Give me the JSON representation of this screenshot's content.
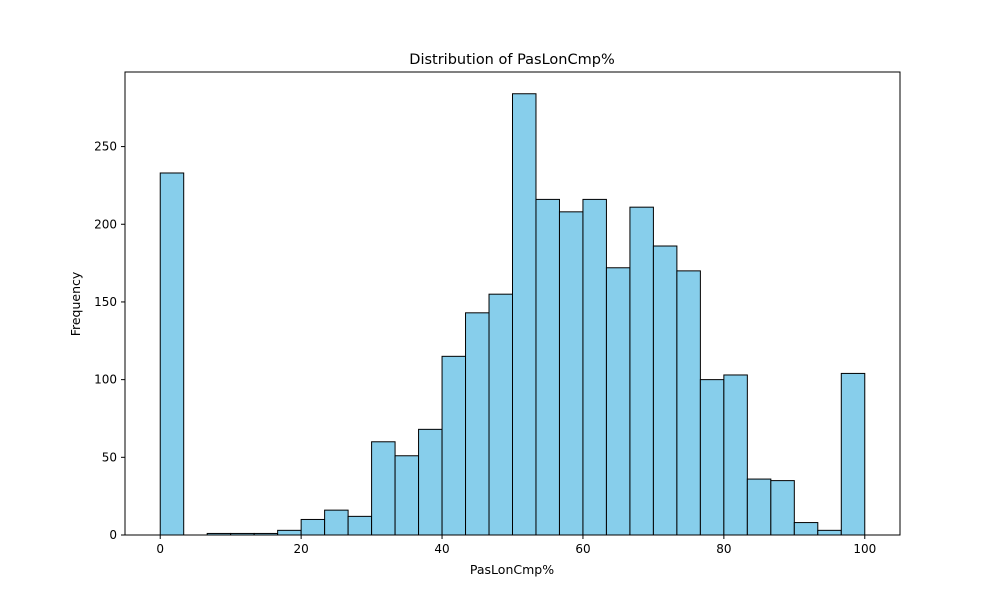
{
  "chart_data": {
    "type": "bar",
    "title": "Distribution of PasLonCmp%",
    "xlabel": "PasLonCmp%",
    "ylabel": "Frequency",
    "bin_edges": [
      0,
      3.333,
      6.667,
      10,
      13.333,
      16.667,
      20,
      23.333,
      26.667,
      30,
      33.333,
      36.667,
      40,
      43.333,
      46.667,
      50,
      53.333,
      56.667,
      60,
      63.333,
      66.667,
      70,
      73.333,
      76.667,
      80,
      83.333,
      86.667,
      90,
      93.333,
      96.667,
      100
    ],
    "values": [
      233,
      0,
      1,
      1,
      1,
      3,
      10,
      16,
      12,
      60,
      51,
      68,
      115,
      143,
      155,
      284,
      216,
      208,
      216,
      172,
      211,
      186,
      170,
      100,
      103,
      36,
      35,
      8,
      3,
      104
    ],
    "xlim": [
      -5,
      105
    ],
    "ylim": [
      0,
      298
    ],
    "xticks": [
      0,
      20,
      40,
      60,
      80,
      100
    ],
    "yticks": [
      0,
      50,
      100,
      150,
      200,
      250
    ],
    "bar_color": "#87CEEB",
    "edge_color": "#000000",
    "grid": false
  }
}
